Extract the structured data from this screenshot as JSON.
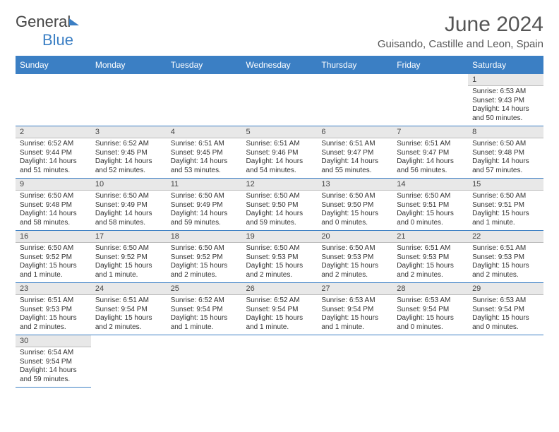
{
  "logo": {
    "text_a": "General",
    "text_b": "Blue"
  },
  "title": "June 2024",
  "location": "Guisando, Castille and Leon, Spain",
  "colors": {
    "header_bg": "#3b7fc4",
    "grid_line": "#3b7fc4",
    "daynum_bg": "#e8e8e8"
  },
  "days_of_week": [
    "Sunday",
    "Monday",
    "Tuesday",
    "Wednesday",
    "Thursday",
    "Friday",
    "Saturday"
  ],
  "weeks": [
    [
      null,
      null,
      null,
      null,
      null,
      null,
      {
        "n": "1",
        "sr": "Sunrise: 6:53 AM",
        "ss": "Sunset: 9:43 PM",
        "dl": "Daylight: 14 hours and 50 minutes."
      }
    ],
    [
      {
        "n": "2",
        "sr": "Sunrise: 6:52 AM",
        "ss": "Sunset: 9:44 PM",
        "dl": "Daylight: 14 hours and 51 minutes."
      },
      {
        "n": "3",
        "sr": "Sunrise: 6:52 AM",
        "ss": "Sunset: 9:45 PM",
        "dl": "Daylight: 14 hours and 52 minutes."
      },
      {
        "n": "4",
        "sr": "Sunrise: 6:51 AM",
        "ss": "Sunset: 9:45 PM",
        "dl": "Daylight: 14 hours and 53 minutes."
      },
      {
        "n": "5",
        "sr": "Sunrise: 6:51 AM",
        "ss": "Sunset: 9:46 PM",
        "dl": "Daylight: 14 hours and 54 minutes."
      },
      {
        "n": "6",
        "sr": "Sunrise: 6:51 AM",
        "ss": "Sunset: 9:47 PM",
        "dl": "Daylight: 14 hours and 55 minutes."
      },
      {
        "n": "7",
        "sr": "Sunrise: 6:51 AM",
        "ss": "Sunset: 9:47 PM",
        "dl": "Daylight: 14 hours and 56 minutes."
      },
      {
        "n": "8",
        "sr": "Sunrise: 6:50 AM",
        "ss": "Sunset: 9:48 PM",
        "dl": "Daylight: 14 hours and 57 minutes."
      }
    ],
    [
      {
        "n": "9",
        "sr": "Sunrise: 6:50 AM",
        "ss": "Sunset: 9:48 PM",
        "dl": "Daylight: 14 hours and 58 minutes."
      },
      {
        "n": "10",
        "sr": "Sunrise: 6:50 AM",
        "ss": "Sunset: 9:49 PM",
        "dl": "Daylight: 14 hours and 58 minutes."
      },
      {
        "n": "11",
        "sr": "Sunrise: 6:50 AM",
        "ss": "Sunset: 9:49 PM",
        "dl": "Daylight: 14 hours and 59 minutes."
      },
      {
        "n": "12",
        "sr": "Sunrise: 6:50 AM",
        "ss": "Sunset: 9:50 PM",
        "dl": "Daylight: 14 hours and 59 minutes."
      },
      {
        "n": "13",
        "sr": "Sunrise: 6:50 AM",
        "ss": "Sunset: 9:50 PM",
        "dl": "Daylight: 15 hours and 0 minutes."
      },
      {
        "n": "14",
        "sr": "Sunrise: 6:50 AM",
        "ss": "Sunset: 9:51 PM",
        "dl": "Daylight: 15 hours and 0 minutes."
      },
      {
        "n": "15",
        "sr": "Sunrise: 6:50 AM",
        "ss": "Sunset: 9:51 PM",
        "dl": "Daylight: 15 hours and 1 minute."
      }
    ],
    [
      {
        "n": "16",
        "sr": "Sunrise: 6:50 AM",
        "ss": "Sunset: 9:52 PM",
        "dl": "Daylight: 15 hours and 1 minute."
      },
      {
        "n": "17",
        "sr": "Sunrise: 6:50 AM",
        "ss": "Sunset: 9:52 PM",
        "dl": "Daylight: 15 hours and 1 minute."
      },
      {
        "n": "18",
        "sr": "Sunrise: 6:50 AM",
        "ss": "Sunset: 9:52 PM",
        "dl": "Daylight: 15 hours and 2 minutes."
      },
      {
        "n": "19",
        "sr": "Sunrise: 6:50 AM",
        "ss": "Sunset: 9:53 PM",
        "dl": "Daylight: 15 hours and 2 minutes."
      },
      {
        "n": "20",
        "sr": "Sunrise: 6:50 AM",
        "ss": "Sunset: 9:53 PM",
        "dl": "Daylight: 15 hours and 2 minutes."
      },
      {
        "n": "21",
        "sr": "Sunrise: 6:51 AM",
        "ss": "Sunset: 9:53 PM",
        "dl": "Daylight: 15 hours and 2 minutes."
      },
      {
        "n": "22",
        "sr": "Sunrise: 6:51 AM",
        "ss": "Sunset: 9:53 PM",
        "dl": "Daylight: 15 hours and 2 minutes."
      }
    ],
    [
      {
        "n": "23",
        "sr": "Sunrise: 6:51 AM",
        "ss": "Sunset: 9:53 PM",
        "dl": "Daylight: 15 hours and 2 minutes."
      },
      {
        "n": "24",
        "sr": "Sunrise: 6:51 AM",
        "ss": "Sunset: 9:54 PM",
        "dl": "Daylight: 15 hours and 2 minutes."
      },
      {
        "n": "25",
        "sr": "Sunrise: 6:52 AM",
        "ss": "Sunset: 9:54 PM",
        "dl": "Daylight: 15 hours and 1 minute."
      },
      {
        "n": "26",
        "sr": "Sunrise: 6:52 AM",
        "ss": "Sunset: 9:54 PM",
        "dl": "Daylight: 15 hours and 1 minute."
      },
      {
        "n": "27",
        "sr": "Sunrise: 6:53 AM",
        "ss": "Sunset: 9:54 PM",
        "dl": "Daylight: 15 hours and 1 minute."
      },
      {
        "n": "28",
        "sr": "Sunrise: 6:53 AM",
        "ss": "Sunset: 9:54 PM",
        "dl": "Daylight: 15 hours and 0 minutes."
      },
      {
        "n": "29",
        "sr": "Sunrise: 6:53 AM",
        "ss": "Sunset: 9:54 PM",
        "dl": "Daylight: 15 hours and 0 minutes."
      }
    ],
    [
      {
        "n": "30",
        "sr": "Sunrise: 6:54 AM",
        "ss": "Sunset: 9:54 PM",
        "dl": "Daylight: 14 hours and 59 minutes."
      },
      null,
      null,
      null,
      null,
      null,
      null
    ]
  ]
}
